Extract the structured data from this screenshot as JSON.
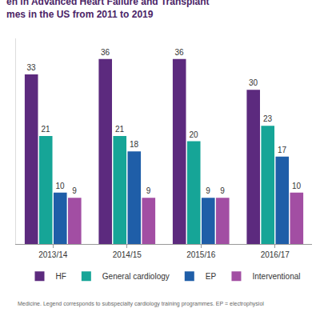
{
  "chart_data": {
    "type": "bar",
    "title": "en in Advanced Heart Failure and Transplant\nmes in the US from 2011 to 2019",
    "categories": [
      "2013/14",
      "2014/15",
      "2015/16",
      "2016/17"
    ],
    "series": [
      {
        "name": "HF",
        "color": "#5c2a7e",
        "values": [
          33,
          36,
          36,
          30
        ]
      },
      {
        "name": "General cardiology",
        "color": "#16a597",
        "values": [
          21,
          21,
          20,
          23
        ]
      },
      {
        "name": "EP",
        "color": "#1f5ea8",
        "values": [
          10,
          18,
          9,
          17
        ]
      },
      {
        "name": "Interventional",
        "color": "#a24ea3",
        "values": [
          9,
          9,
          9,
          10
        ]
      }
    ],
    "ylim": [
      0,
      40
    ],
    "data_labels": true,
    "tick_labels": "x",
    "legend": "bottom",
    "annotations": [
      "Medicine. Legend corresponds to subspecialty cardiology training programmes. EP = electrophysiol"
    ]
  }
}
